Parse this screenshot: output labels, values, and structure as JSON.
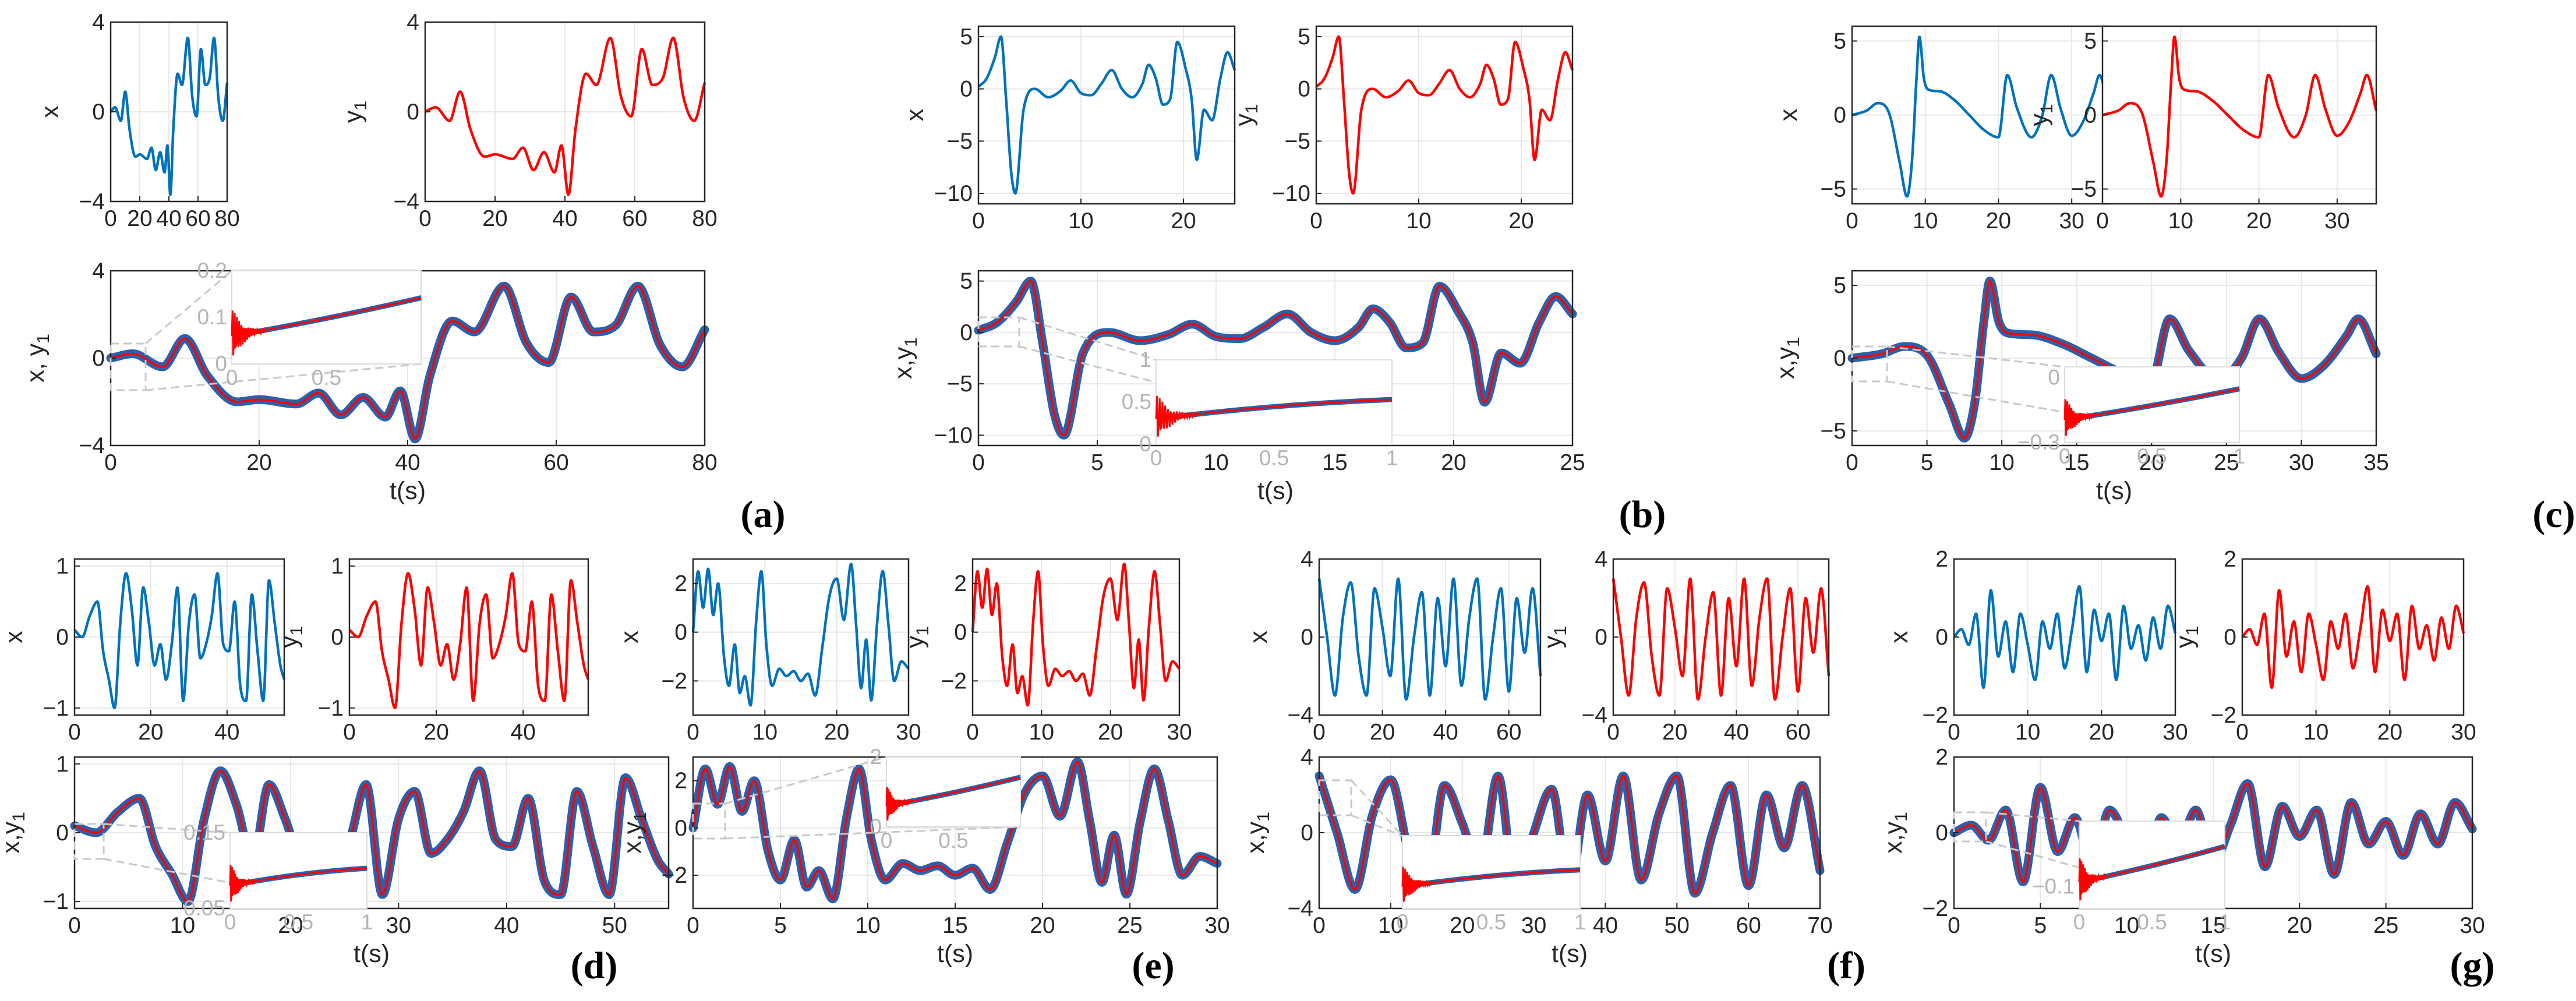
{
  "colors": {
    "blue": "#0072BD",
    "red": "#FF0000",
    "thick": "#2E5FA8",
    "grid": "#e8e8e8",
    "zoom": "#c8c8c8"
  },
  "figure": {
    "panel_labels": [
      "(a)",
      "(b)",
      "(c)",
      "(d)",
      "(e)",
      "(f)",
      "(g)"
    ]
  },
  "chart_data": [
    {
      "panel": "(a)",
      "type": "line",
      "title": "",
      "xlabel": "t(s)",
      "ylabels": [
        "x",
        "y1",
        "x, y1"
      ],
      "sub": {
        "xlim": [
          0,
          80
        ],
        "ylim": [
          -4,
          4
        ],
        "xticks": [
          0,
          20,
          40,
          60,
          80
        ],
        "yticks": [
          -4,
          0,
          4
        ]
      },
      "main": {
        "xlim": [
          0,
          80
        ],
        "ylim": [
          -4,
          4
        ],
        "xticks": [
          0,
          20,
          40,
          60,
          80
        ],
        "yticks": [
          -4,
          0,
          4
        ]
      },
      "inset": {
        "xlim": [
          0,
          1
        ],
        "ylim": [
          0,
          0.2
        ],
        "xticks": [
          0,
          0.5
        ],
        "yticks": [
          0,
          0.1,
          0.2
        ]
      },
      "series": [
        {
          "name": "x",
          "t": [
            0,
            3,
            7,
            10,
            13,
            17,
            20,
            25,
            28,
            31,
            34,
            37,
            39,
            41,
            43,
            46,
            49,
            53,
            56,
            59,
            62,
            65,
            68,
            71,
            74,
            77,
            80
          ],
          "values": [
            0,
            0.2,
            -0.4,
            0.9,
            -0.8,
            -2.0,
            -1.9,
            -2.1,
            -1.6,
            -2.6,
            -1.8,
            -2.7,
            -1.5,
            -3.7,
            -0.8,
            1.7,
            1.2,
            3.3,
            0.7,
            -0.2,
            2.8,
            1.2,
            1.5,
            3.3,
            0.6,
            -0.4,
            1.3
          ]
        },
        {
          "name": "y1",
          "same_as": "x"
        }
      ]
    },
    {
      "panel": "(b)",
      "type": "line",
      "title": "",
      "xlabel": "t(s)",
      "ylabels": [
        "x",
        "y1",
        "x,y1"
      ],
      "sub": {
        "xlim": [
          0,
          25
        ],
        "ylim": [
          -11,
          6
        ],
        "xticks": [
          0,
          10,
          20
        ],
        "yticks": [
          -10,
          -5,
          0,
          5
        ]
      },
      "main": {
        "xlim": [
          0,
          25
        ],
        "ylim": [
          -11,
          6
        ],
        "xticks": [
          0,
          5,
          10,
          15,
          20,
          25
        ],
        "yticks": [
          -10,
          -5,
          0,
          5
        ]
      },
      "inset": {
        "xlim": [
          0,
          1
        ],
        "ylim": [
          0,
          1
        ],
        "xticks": [
          0,
          0.5,
          1
        ],
        "yticks": [
          0,
          0.5,
          1
        ]
      },
      "series": [
        {
          "name": "x",
          "t": [
            0,
            0.8,
            1.6,
            2.2,
            2.7,
            3.2,
            3.6,
            4.4,
            5.5,
            6.8,
            8,
            9,
            10,
            11,
            12,
            13,
            14,
            15,
            16,
            16.6,
            17.3,
            18,
            18.7,
            19.4,
            20.2,
            20.8,
            21.3,
            22,
            22.8,
            23.6,
            24.3,
            25
          ],
          "values": [
            0.2,
            1,
            3,
            5,
            -1,
            -8,
            -10,
            -2,
            0,
            -0.8,
            -0.2,
            0.8,
            -0.4,
            -0.6,
            0.5,
            1.8,
            0,
            -0.8,
            0.5,
            2.3,
            1,
            -1.5,
            -1,
            4.5,
            2,
            -1,
            -6.8,
            -2,
            -3,
            1,
            3.5,
            1.8
          ]
        },
        {
          "name": "y1",
          "same_as": "x"
        }
      ]
    },
    {
      "panel": "(c)",
      "type": "line",
      "title": "",
      "xlabel": "t(s)",
      "ylabels": [
        "x",
        "y1",
        "x,y1"
      ],
      "sub": {
        "xlim": [
          0,
          35
        ],
        "ylim": [
          -6,
          6
        ],
        "xticks": [
          0,
          10,
          20,
          30
        ],
        "yticks": [
          -5,
          0,
          5
        ]
      },
      "main": {
        "xlim": [
          0,
          35
        ],
        "ylim": [
          -6,
          6
        ],
        "xticks": [
          0,
          5,
          10,
          15,
          20,
          25,
          30,
          35
        ],
        "yticks": [
          -5,
          0,
          5
        ]
      },
      "inset": {
        "xlim": [
          0,
          1
        ],
        "ylim": [
          -0.3,
          0.05
        ],
        "xticks": [
          0,
          0.5,
          1
        ],
        "yticks": [
          -0.3,
          0
        ]
      },
      "series": [
        {
          "name": "x",
          "t": [
            0,
            2,
            3.5,
            5,
            6.5,
            7.5,
            8.2,
            8.8,
            9.2,
            9.8,
            10.5,
            12,
            14,
            16,
            18,
            20,
            21.2,
            22.5,
            24.5,
            26,
            27.2,
            28.5,
            30,
            31.5,
            33,
            33.8,
            35
          ],
          "values": [
            0,
            0.3,
            0.8,
            0.2,
            -3.2,
            -5.5,
            -3,
            2.5,
            5.3,
            2.5,
            1.7,
            1.6,
            1,
            0,
            -1,
            -1.5,
            2.7,
            0.5,
            -1.5,
            0,
            2.7,
            0.4,
            -1.4,
            -0.5,
            1.5,
            2.7,
            0.3
          ]
        },
        {
          "name": "y1",
          "same_as": "x"
        }
      ]
    },
    {
      "panel": "(d)",
      "type": "line",
      "title": "",
      "xlabel": "t(s)",
      "ylabels": [
        "x",
        "y1",
        "x,y1"
      ],
      "sub": {
        "xlim": [
          0,
          55
        ],
        "ylim": [
          -1.1,
          1.1
        ],
        "xticks": [
          0,
          20,
          40
        ],
        "yticks": [
          -1,
          0,
          1
        ]
      },
      "main": {
        "xlim": [
          0,
          55
        ],
        "ylim": [
          -1.1,
          1.1
        ],
        "xticks": [
          0,
          10,
          20,
          30,
          40,
          50
        ],
        "yticks": [
          -1,
          0,
          1
        ]
      },
      "inset": {
        "xlim": [
          0,
          1
        ],
        "ylim": [
          0.05,
          0.15
        ],
        "xticks": [
          0,
          0.5,
          1
        ],
        "yticks": [
          0.05,
          0.15
        ]
      },
      "series": [
        {
          "name": "x",
          "t": [
            0,
            2,
            4,
            6,
            7.5,
            9,
            10.5,
            12,
            13.5,
            15,
            16.5,
            18,
            19.5,
            21,
            22.5,
            24,
            25.5,
            27,
            28.5,
            30,
            31.5,
            33,
            34.5,
            36,
            37.5,
            39,
            40.5,
            42,
            43.5,
            45,
            46.5,
            48,
            49.5,
            51,
            52.5,
            54,
            55
          ],
          "values": [
            0.1,
            0,
            0.3,
            0.5,
            -0.2,
            -0.6,
            -1,
            0.2,
            0.9,
            0.4,
            -0.4,
            0.7,
            0.2,
            -0.4,
            -0.1,
            -0.6,
            -0.1,
            0.7,
            -0.9,
            0.2,
            0.6,
            -0.3,
            -0.1,
            0.3,
            0.9,
            -0.1,
            -0.2,
            0.5,
            -0.7,
            -0.9,
            0.6,
            -0.2,
            -0.9,
            0.8,
            0.2,
            -0.4,
            -0.6
          ]
        },
        {
          "name": "y1",
          "same_as": "x"
        }
      ]
    },
    {
      "panel": "(e)",
      "type": "line",
      "title": "",
      "xlabel": "t(s)",
      "ylabels": [
        "x",
        "y1",
        "x,y1"
      ],
      "sub": {
        "xlim": [
          0,
          30
        ],
        "ylim": [
          -3.4,
          3
        ],
        "xticks": [
          0,
          10,
          20,
          30
        ],
        "yticks": [
          -2,
          0,
          2
        ]
      },
      "main": {
        "xlim": [
          0,
          30
        ],
        "ylim": [
          -3.4,
          3
        ],
        "xticks": [
          0,
          5,
          10,
          15,
          20,
          25,
          30
        ],
        "yticks": [
          -2,
          0,
          2
        ]
      },
      "inset": {
        "xlim": [
          0,
          1
        ],
        "ylim": [
          0,
          2
        ],
        "xticks": [
          0,
          0.5
        ],
        "yticks": [
          0,
          2
        ]
      },
      "series": [
        {
          "name": "x",
          "t": [
            0,
            0.7,
            1.4,
            2.1,
            2.8,
            3.5,
            4.3,
            5,
            5.8,
            6.5,
            7.2,
            8,
            8.8,
            9.5,
            10.2,
            11,
            12,
            13,
            14,
            15,
            16,
            17,
            18,
            19,
            20,
            21,
            22,
            22.7,
            23.4,
            24.1,
            24.8,
            25.6,
            26.4,
            27.2,
            28,
            29,
            30
          ],
          "values": [
            0,
            2.5,
            1,
            2.6,
            0.7,
            2,
            -1,
            -2.2,
            -0.5,
            -2.5,
            -1.8,
            -3,
            0.5,
            2.5,
            -0.5,
            -2.2,
            -1.5,
            -1.8,
            -1.6,
            -2,
            -1.7,
            -2.6,
            -0.6,
            1.5,
            2.2,
            0.5,
            2.8,
            0.3,
            -2.3,
            -0.3,
            -2.8,
            0.3,
            2.5,
            0.3,
            -2,
            -1.2,
            -1.5
          ]
        },
        {
          "name": "y1",
          "same_as": "x"
        }
      ]
    },
    {
      "panel": "(f)",
      "type": "line",
      "title": "",
      "xlabel": "t(s)",
      "ylabels": [
        "x",
        "y1",
        "x,y1"
      ],
      "sub": {
        "xlim": [
          0,
          70
        ],
        "ylim": [
          -4,
          4
        ],
        "xticks": [
          0,
          20,
          40,
          60
        ],
        "yticks": [
          -4,
          0,
          4
        ]
      },
      "main": {
        "xlim": [
          0,
          70
        ],
        "ylim": [
          -4,
          4
        ],
        "xticks": [
          0,
          10,
          20,
          30,
          40,
          50,
          60,
          70
        ],
        "yticks": [
          -4,
          0,
          4
        ]
      },
      "inset": {
        "xlim": [
          0,
          1
        ],
        "ylim": [
          -0.5,
          0.5
        ],
        "xticks": [
          0,
          0.5,
          1
        ],
        "yticks": []
      },
      "series": [
        {
          "name": "x",
          "t": [
            0,
            2.5,
            5,
            7.5,
            10,
            12.5,
            15,
            17.5,
            20,
            22.5,
            25,
            27.5,
            30,
            32.5,
            35,
            37.5,
            40,
            42.5,
            45,
            47.5,
            50,
            52.5,
            55,
            57.5,
            60,
            62.5,
            65,
            67.5,
            70
          ],
          "values": [
            3,
            0,
            -3,
            1,
            2.8,
            -1,
            -3,
            2.5,
            0.5,
            -2,
            3,
            -3.2,
            0,
            2.3,
            -3,
            2,
            -1.5,
            3,
            -2.5,
            1,
            3,
            -3.2,
            0,
            2.5,
            -2.8,
            2,
            -0.8,
            2.5,
            -2
          ]
        },
        {
          "name": "y1",
          "same_as": "x"
        }
      ]
    },
    {
      "panel": "(g)",
      "type": "line",
      "title": "",
      "xlabel": "t(s)",
      "ylabels": [
        "x",
        "y1",
        "x,y1"
      ],
      "sub": {
        "xlim": [
          0,
          30
        ],
        "ylim": [
          -2,
          2
        ],
        "xticks": [
          0,
          10,
          20,
          30
        ],
        "yticks": [
          -2,
          0,
          2
        ]
      },
      "main": {
        "xlim": [
          0,
          30
        ],
        "ylim": [
          -2,
          2
        ],
        "xticks": [
          0,
          5,
          10,
          15,
          20,
          25,
          30
        ],
        "yticks": [
          -2,
          0,
          2
        ]
      },
      "inset": {
        "xlim": [
          0,
          1
        ],
        "ylim": [
          -0.15,
          0.05
        ],
        "xticks": [
          0,
          0.5,
          1
        ],
        "yticks": [
          -0.1
        ]
      },
      "series": [
        {
          "name": "x",
          "t": [
            0,
            1,
            2,
            3,
            4,
            5,
            6,
            7,
            8,
            9,
            10,
            11,
            12,
            13,
            14,
            15,
            16,
            17,
            18,
            19,
            20,
            21,
            22,
            23,
            24,
            25,
            26,
            27,
            28,
            29,
            30
          ],
          "values": [
            0,
            0.2,
            -0.2,
            0.6,
            -1.3,
            1.2,
            -0.5,
            0.4,
            -0.9,
            0.6,
            -0.2,
            -1.1,
            0.4,
            -0.3,
            0.6,
            -0.8,
            0.2,
            1.3,
            -0.9,
            0.7,
            -0.1,
            0.6,
            -1.1,
            0.8,
            -0.3,
            0.3,
            -0.6,
            0.5,
            -0.3,
            0.8,
            0.1
          ]
        },
        {
          "name": "y1",
          "same_as": "x"
        }
      ]
    }
  ]
}
